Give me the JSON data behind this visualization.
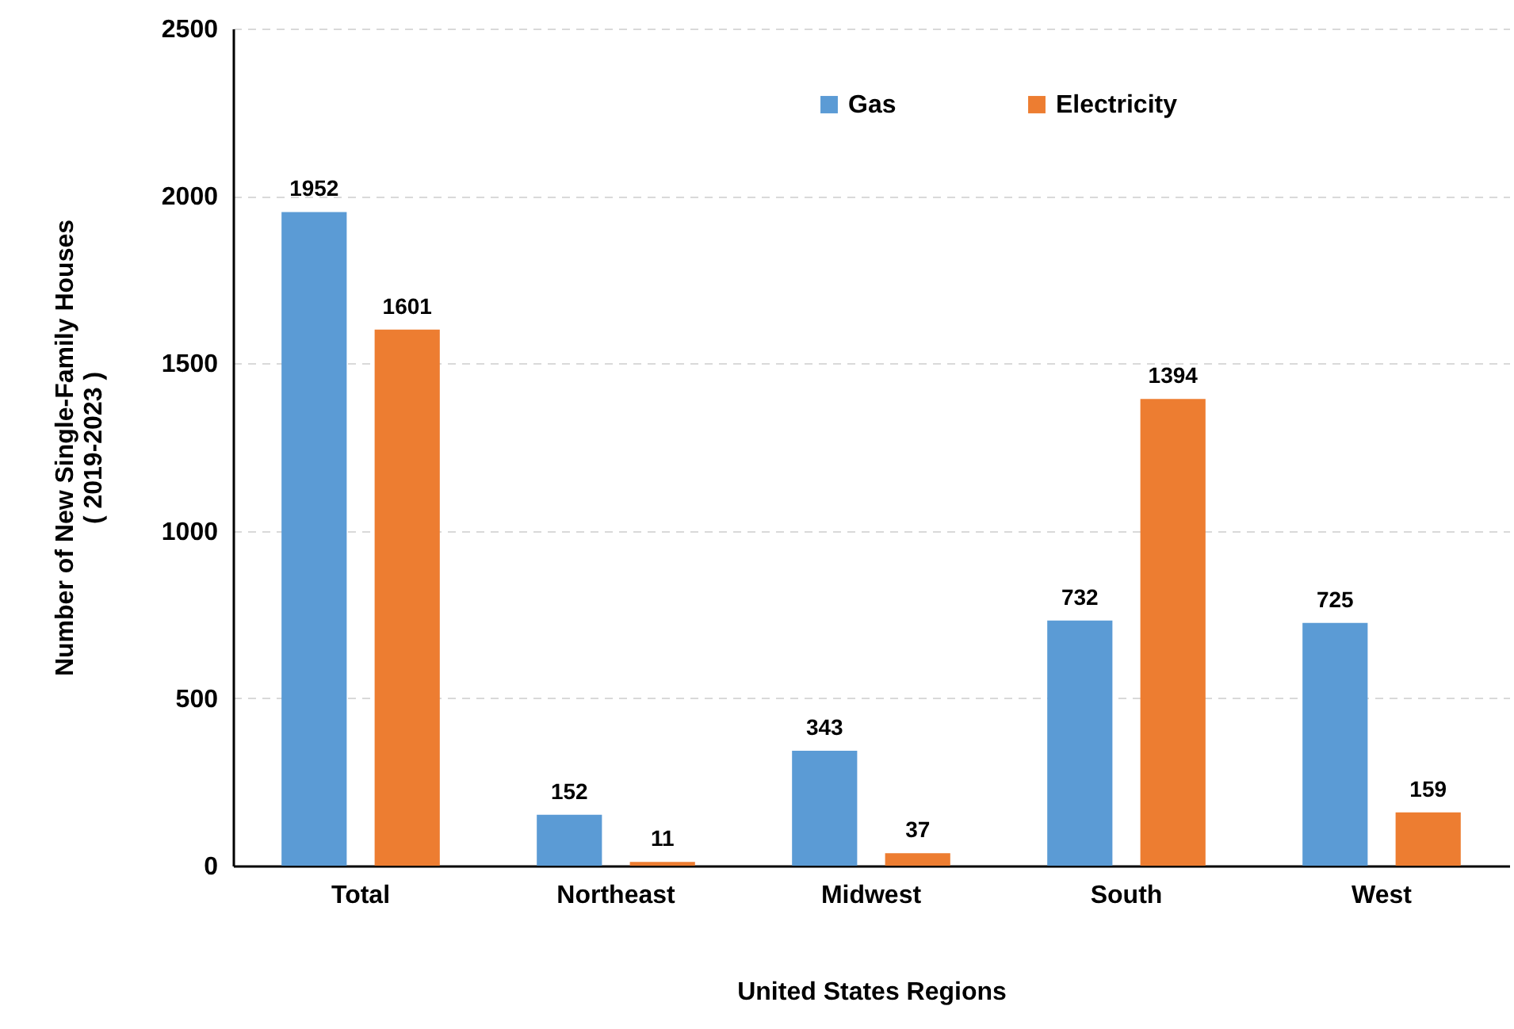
{
  "chart_data": {
    "type": "bar",
    "xlabel": "United States Regions",
    "ylabel": "Number of New Single-Family Houses\n( 2019-2023 )",
    "categories": [
      "Total",
      "Northeast",
      "Midwest",
      "South",
      "West"
    ],
    "series": [
      {
        "name": "Gas",
        "color": "#5b9bd5",
        "values": [
          1952,
          152,
          343,
          732,
          725
        ]
      },
      {
        "name": "Electricity",
        "color": "#ed7d31",
        "values": [
          1601,
          11,
          37,
          1394,
          159
        ]
      }
    ],
    "ylim": [
      0,
      2500
    ],
    "yticks": [
      0,
      500,
      1000,
      1500,
      2000,
      2500
    ],
    "grid": "y",
    "legend": "top",
    "data_labels": true
  }
}
